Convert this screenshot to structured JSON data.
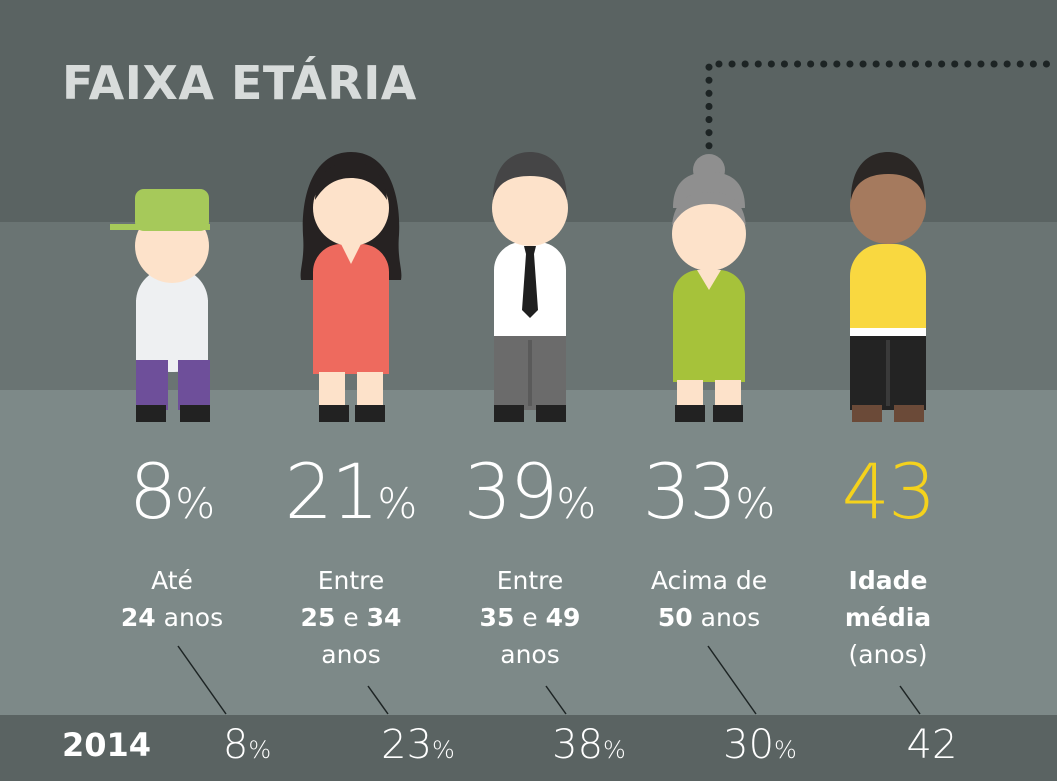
{
  "title": "FAIXA ETÁRIA",
  "groups": [
    {
      "value": "8",
      "unit": "%",
      "label_top": "Até",
      "label_bold_a": "24",
      "label_mid": "anos",
      "label_bold_b": "",
      "label_bottom": "",
      "prev": "8",
      "prev_unit": "%"
    },
    {
      "value": "21",
      "unit": "%",
      "label_top": "Entre",
      "label_bold_a": "25",
      "label_mid": "e",
      "label_bold_b": "34",
      "label_bottom": "anos",
      "prev": "23",
      "prev_unit": "%"
    },
    {
      "value": "39",
      "unit": "%",
      "label_top": "Entre",
      "label_bold_a": "35",
      "label_mid": "e",
      "label_bold_b": "49",
      "label_bottom": "anos",
      "prev": "38",
      "prev_unit": "%"
    },
    {
      "value": "33",
      "unit": "%",
      "label_top": "Acima de",
      "label_bold_a": "50",
      "label_mid": "anos",
      "label_bold_b": "",
      "label_bottom": "",
      "prev": "30",
      "prev_unit": "%"
    }
  ],
  "average": {
    "value": "43",
    "label_line1": "Idade",
    "label_line2": "média",
    "label_line3": "(anos)",
    "prev": "42"
  },
  "year_label": "2014",
  "colors": {
    "average_value": "#f5d21c",
    "cap": "#a6c95a",
    "dress": "#ee6a5e",
    "green_dress": "#a6c23a",
    "yellow_shirt": "#f9d840"
  }
}
